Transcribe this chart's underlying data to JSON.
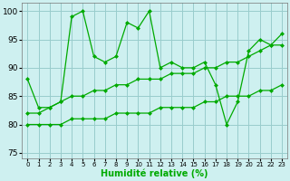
{
  "xlabel": "Humidité relative (%)",
  "xlim": [
    -0.5,
    23.5
  ],
  "ylim": [
    74,
    101.5
  ],
  "yticks": [
    75,
    80,
    85,
    90,
    95,
    100
  ],
  "bg_color": "#cef0f0",
  "grid_color": "#99cccc",
  "line_color": "#00aa00",
  "line1_x": [
    0,
    1,
    2,
    3,
    4,
    5,
    6,
    7,
    8,
    9,
    10,
    11,
    12,
    13,
    14,
    15,
    16,
    17,
    18,
    19,
    20,
    21,
    22,
    23
  ],
  "line1_y": [
    88,
    83,
    83,
    84,
    99,
    100,
    92,
    91,
    92,
    98,
    97,
    100,
    90,
    91,
    90,
    90,
    91,
    87,
    80,
    84,
    93,
    95,
    94,
    96
  ],
  "line2_x": [
    0,
    1,
    2,
    3,
    4,
    5,
    6,
    7,
    8,
    9,
    10,
    11,
    12,
    13,
    14,
    15,
    16,
    17,
    18,
    19,
    20,
    21,
    22,
    23
  ],
  "line2_y": [
    82,
    82,
    83,
    84,
    85,
    85,
    86,
    86,
    87,
    87,
    88,
    88,
    88,
    89,
    89,
    89,
    90,
    90,
    91,
    91,
    92,
    93,
    94,
    94
  ],
  "line3_x": [
    0,
    1,
    2,
    3,
    4,
    5,
    6,
    7,
    8,
    9,
    10,
    11,
    12,
    13,
    14,
    15,
    16,
    17,
    18,
    19,
    20,
    21,
    22,
    23
  ],
  "line3_y": [
    80,
    80,
    80,
    80,
    81,
    81,
    81,
    81,
    82,
    82,
    82,
    82,
    83,
    83,
    83,
    83,
    84,
    84,
    85,
    85,
    85,
    86,
    86,
    87
  ]
}
